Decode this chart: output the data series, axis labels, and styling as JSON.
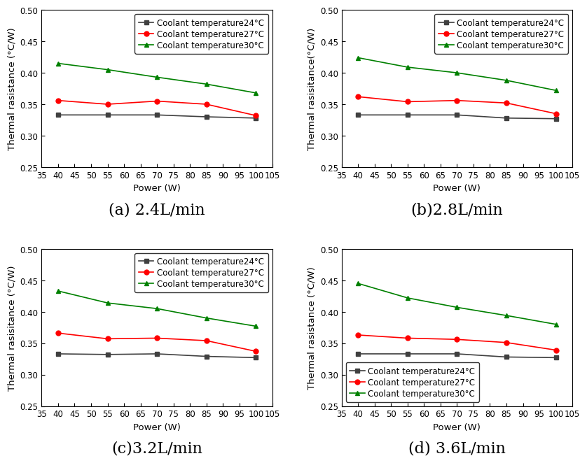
{
  "power": [
    40,
    55,
    70,
    85,
    100
  ],
  "subplots": [
    {
      "title": "(a) 2.4L/min",
      "ylabel": "Thermal rasistance (°C/W)",
      "legend_loc": "upper right",
      "data": {
        "24": [
          0.333,
          0.333,
          0.333,
          0.33,
          0.328
        ],
        "27": [
          0.356,
          0.35,
          0.355,
          0.35,
          0.332
        ],
        "30": [
          0.415,
          0.405,
          0.393,
          0.382,
          0.368
        ]
      }
    },
    {
      "title": "(b)2.8L/min",
      "ylabel": "Thermal rasisitance(°C/W)",
      "legend_loc": "upper right",
      "data": {
        "24": [
          0.333,
          0.333,
          0.333,
          0.328,
          0.327
        ],
        "27": [
          0.362,
          0.354,
          0.356,
          0.352,
          0.335
        ],
        "30": [
          0.424,
          0.409,
          0.4,
          0.388,
          0.372
        ]
      }
    },
    {
      "title": "(c)3.2L/min",
      "ylabel": "Thermal rasisitance (°C/W)",
      "legend_loc": "upper right",
      "data": {
        "24": [
          0.333,
          0.332,
          0.333,
          0.329,
          0.327
        ],
        "27": [
          0.366,
          0.357,
          0.358,
          0.354,
          0.337
        ],
        "30": [
          0.433,
          0.414,
          0.405,
          0.39,
          0.377
        ]
      }
    },
    {
      "title": "(d) 3.6L/min",
      "ylabel": "Thermal rasistance (°C/W)",
      "legend_loc": "lower left",
      "data": {
        "24": [
          0.333,
          0.333,
          0.333,
          0.328,
          0.327
        ],
        "27": [
          0.363,
          0.358,
          0.356,
          0.351,
          0.339
        ],
        "30": [
          0.445,
          0.422,
          0.407,
          0.394,
          0.38
        ]
      }
    }
  ],
  "legend_labels": {
    "24": "Coolant temperature24°C",
    "27": "Coolant temperature27°C",
    "30": "Coolant temperature30°C"
  },
  "colors": {
    "24": "#404040",
    "27": "#ff0000",
    "30": "#008000"
  },
  "markers": {
    "24": "s",
    "27": "o",
    "30": "^"
  },
  "xlim": [
    35,
    105
  ],
  "ylim": [
    0.25,
    0.5
  ],
  "xticks": [
    35,
    40,
    45,
    50,
    55,
    60,
    65,
    70,
    75,
    80,
    85,
    90,
    95,
    100,
    105
  ],
  "yticks": [
    0.25,
    0.3,
    0.35,
    0.4,
    0.45,
    0.5
  ],
  "xlabel": "Power (W)",
  "title_fontsize": 16,
  "axis_fontsize": 9.5,
  "legend_fontsize": 8.5,
  "tick_fontsize": 8.5
}
